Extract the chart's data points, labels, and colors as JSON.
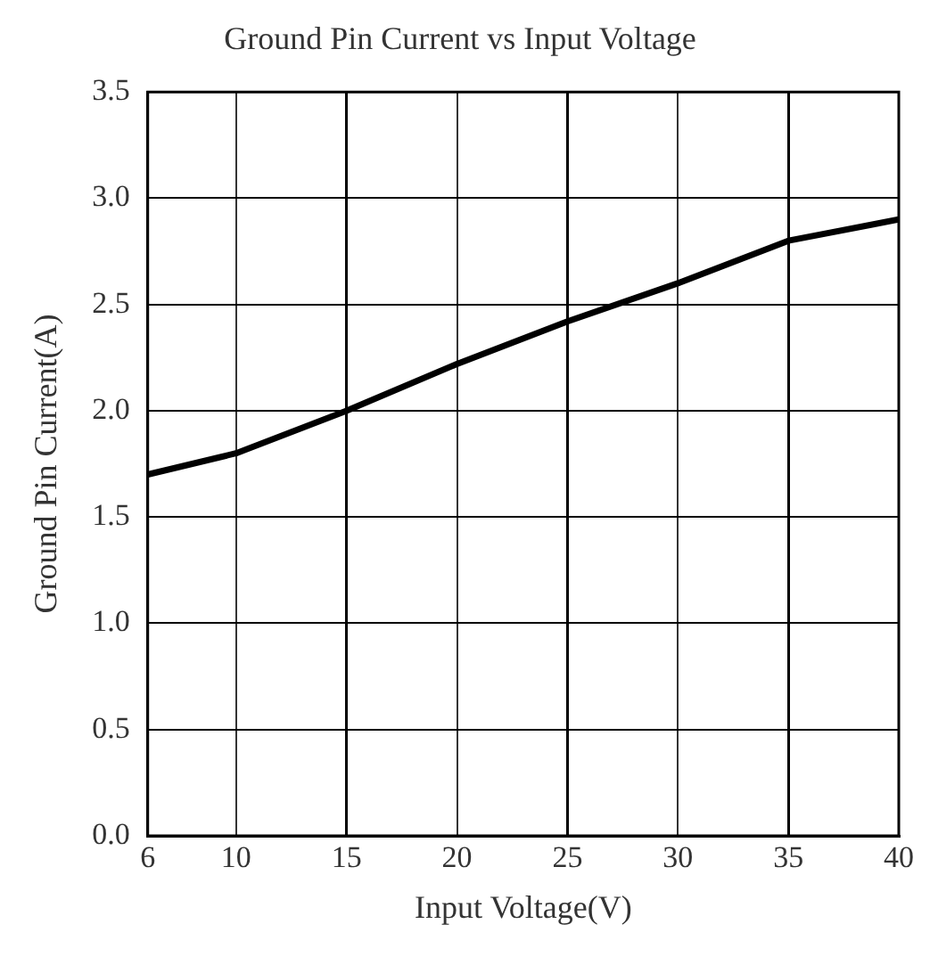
{
  "chart_data": {
    "type": "line",
    "title": "Ground Pin Current vs Input Voltage",
    "xlabel": "Input Voltage(V)",
    "ylabel": "Ground Pin Current(A)",
    "x": [
      6,
      10,
      15,
      20,
      25,
      30,
      35,
      40
    ],
    "series": [
      {
        "color": "#000000",
        "values": [
          1.7,
          1.8,
          2.0,
          2.22,
          2.42,
          2.6,
          2.8,
          2.9
        ]
      }
    ],
    "xlim": [
      6,
      40
    ],
    "xticks": [
      6,
      10,
      15,
      20,
      25,
      30,
      35,
      40
    ],
    "ylim": [
      0,
      3.5
    ],
    "yticks": [
      {
        "value": 0,
        "label": "0.0"
      },
      {
        "value": 0.5,
        "label": "0.5"
      },
      {
        "value": 1,
        "label": "1.0"
      },
      {
        "value": 1.5,
        "label": "1.5"
      },
      {
        "value": 2,
        "label": "2.0"
      },
      {
        "value": 2.5,
        "label": "2.5"
      },
      {
        "value": 3,
        "label": "3.0"
      },
      {
        "value": 3.5,
        "label": "3.5"
      }
    ],
    "grid": true,
    "marker": "none",
    "line_style": "solid"
  }
}
